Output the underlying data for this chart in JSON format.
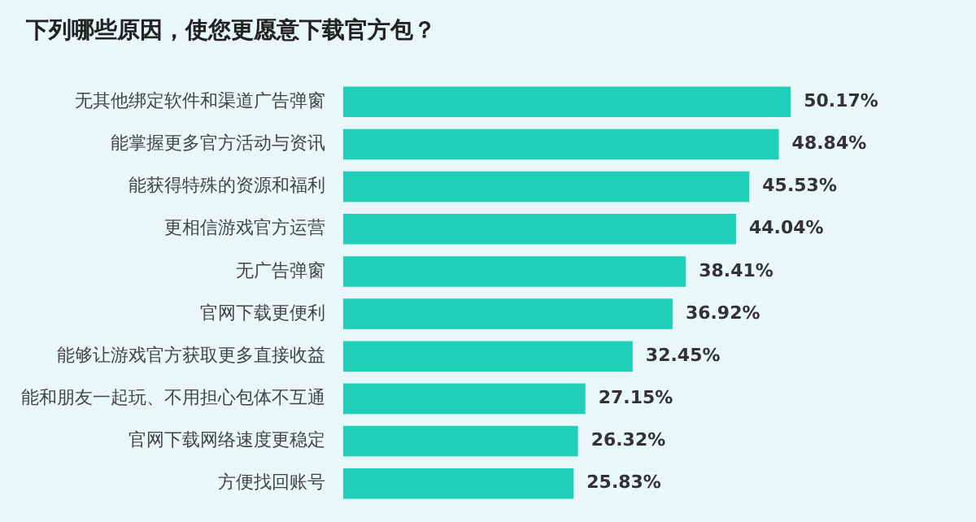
{
  "chart_data": {
    "type": "bar",
    "orientation": "horizontal",
    "title": "下列哪些原因，使您更愿意下载官方包？",
    "categories": [
      "无其他绑定软件和渠道广告弹窗",
      "能掌握更多官方活动与资讯",
      "能获得特殊的资源和福利",
      "更相信游戏官方运营",
      "无广告弹窗",
      "官网下载更便利",
      "能够让游戏官方获取更多直接收益",
      "能和朋友一起玩、不用担心包体不互通",
      "官网下载网络速度更稳定",
      "方便找回账号"
    ],
    "values": [
      50.17,
      48.84,
      45.53,
      44.04,
      38.41,
      36.92,
      32.45,
      27.15,
      26.32,
      25.83
    ],
    "value_labels": [
      "50.17%",
      "48.84%",
      "45.53%",
      "44.04%",
      "38.41%",
      "36.92%",
      "32.45%",
      "27.15%",
      "26.32%",
      "25.83%"
    ],
    "color": "#1fcfba",
    "tick_labels": "y",
    "legend": false
  }
}
